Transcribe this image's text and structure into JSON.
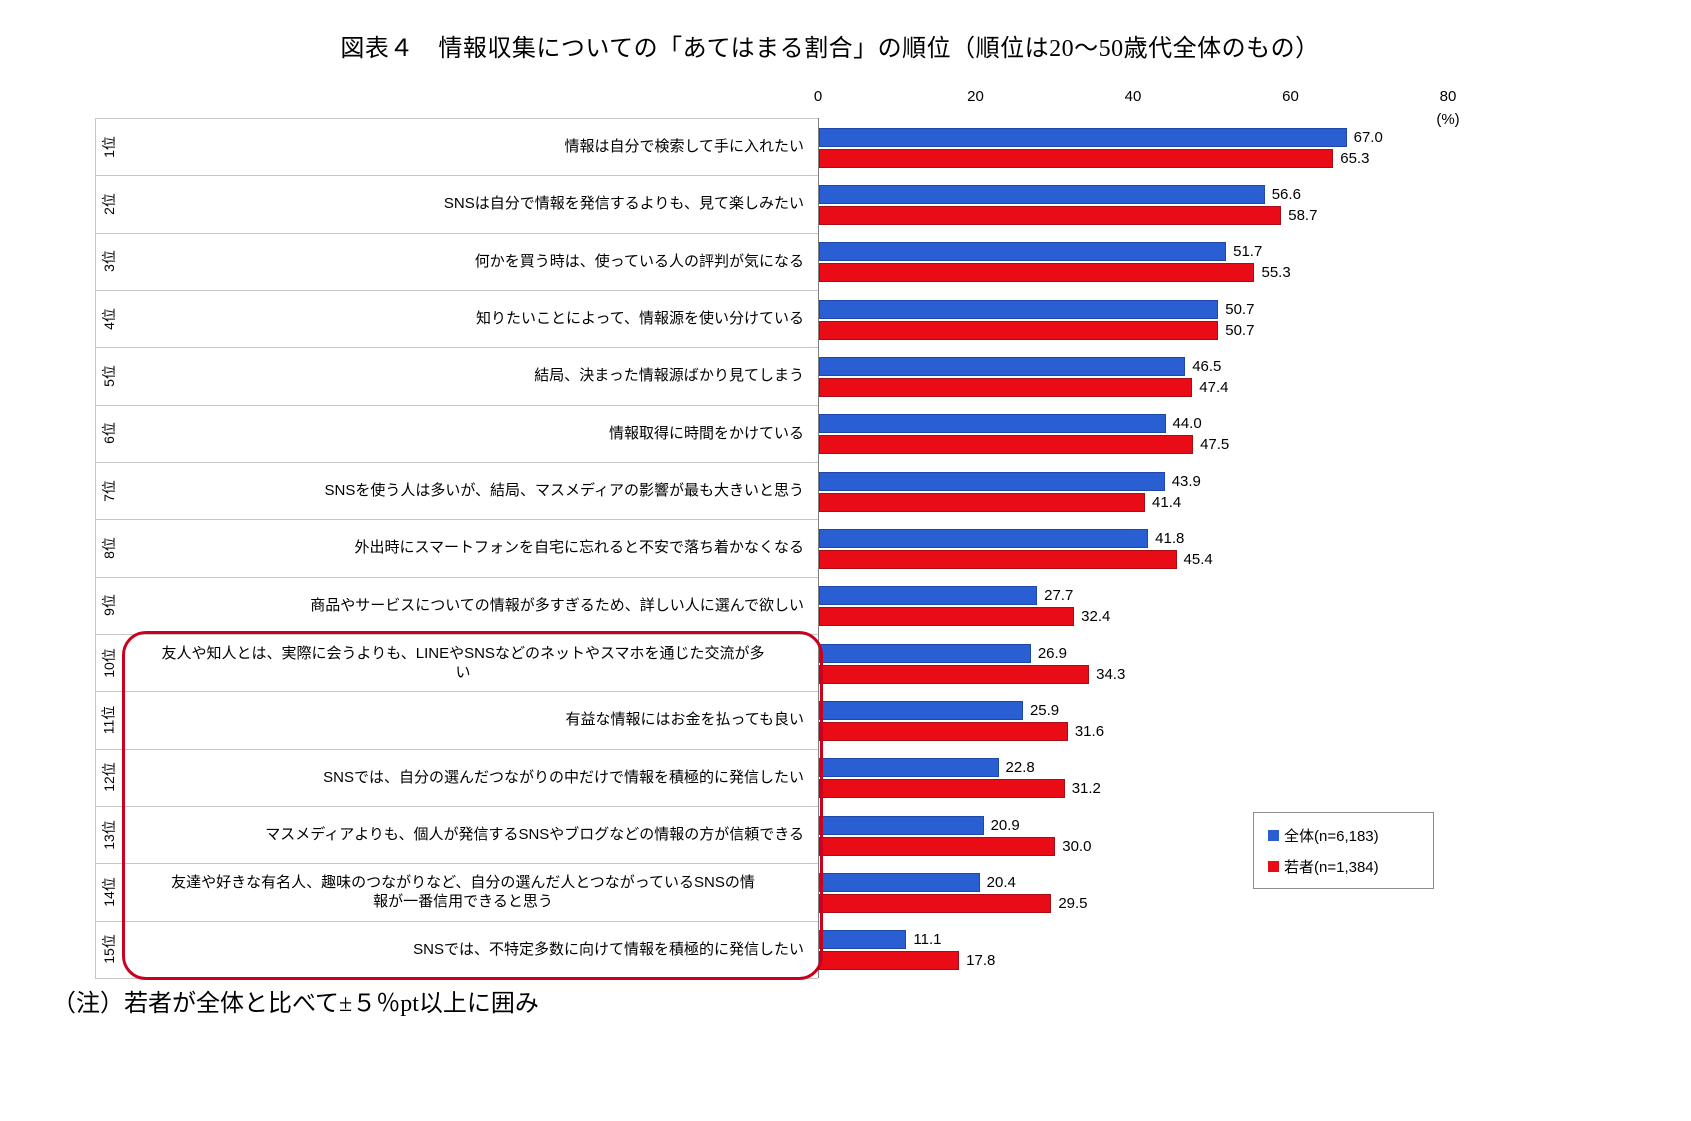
{
  "title": "図表４　情報収集についての「あてはまる割合」の順位（順位は20～50歳代全体のもの）",
  "note": "（注）若者が全体と比べて±５％pt以上に囲み",
  "axis": {
    "unit": "(%)",
    "ticks": [
      0,
      20,
      40,
      60,
      80
    ],
    "max": 80
  },
  "legend": [
    {
      "label": "全体(n=6,183)",
      "color": "#2a5fd4"
    },
    {
      "label": "若者(n=1,384)",
      "color": "#e90c17"
    }
  ],
  "chart_data": {
    "type": "bar",
    "orientation": "horizontal",
    "title": "図表４　情報収集についての「あてはまる割合」の順位（順位は20～50歳代全体のもの）",
    "xlabel": "(%)",
    "xlim": [
      0,
      80
    ],
    "grid": false,
    "legend_position": "right",
    "ranks": [
      "1位",
      "2位",
      "3位",
      "4位",
      "5位",
      "6位",
      "7位",
      "8位",
      "9位",
      "10位",
      "11位",
      "12位",
      "13位",
      "14位",
      "15位"
    ],
    "categories": [
      "情報は自分で検索して手に入れたい",
      "SNSは自分で情報を発信するよりも、見て楽しみたい",
      "何かを買う時は、使っている人の評判が気になる",
      "知りたいことによって、情報源を使い分けている",
      "結局、決まった情報源ばかり見てしまう",
      "情報取得に時間をかけている",
      "SNSを使う人は多いが、結局、マスメディアの影響が最も大きいと思う",
      "外出時にスマートフォンを自宅に忘れると不安で落ち着かなくなる",
      "商品やサービスについての情報が多すぎるため、詳しい人に選んで欲しい",
      "友人や知人とは、実際に会うよりも、LINEやSNSなどのネットやスマホを通じた交流が多\nい",
      "有益な情報にはお金を払っても良い",
      "SNSでは、自分の選んだつながりの中だけで情報を積極的に発信したい",
      "マスメディアよりも、個人が発信するSNSやブログなどの情報の方が信頼できる",
      "友達や好きな有名人、趣味のつながりなど、自分の選んだ人とつながっているSNSの情\n報が一番信用できると思う",
      "SNSでは、不特定多数に向けて情報を積極的に発信したい"
    ],
    "wrapped_rows": [
      10,
      14
    ],
    "series": [
      {
        "name": "全体(n=6,183)",
        "color": "#2a5fd4",
        "values": [
          67.0,
          56.6,
          51.7,
          50.7,
          46.5,
          44.0,
          43.9,
          41.8,
          27.7,
          26.9,
          25.9,
          22.8,
          20.9,
          20.4,
          11.1
        ]
      },
      {
        "name": "若者(n=1,384)",
        "color": "#e90c17",
        "values": [
          65.3,
          58.7,
          55.3,
          50.7,
          47.4,
          47.5,
          41.4,
          45.4,
          32.4,
          34.3,
          31.6,
          31.2,
          30.0,
          29.5,
          17.8
        ]
      }
    ],
    "highlighted_ranks": [
      10,
      11,
      12,
      13,
      14,
      15
    ],
    "highlight_meaning": "若者が全体と比べて±５％pt以上の項目を囲み"
  }
}
